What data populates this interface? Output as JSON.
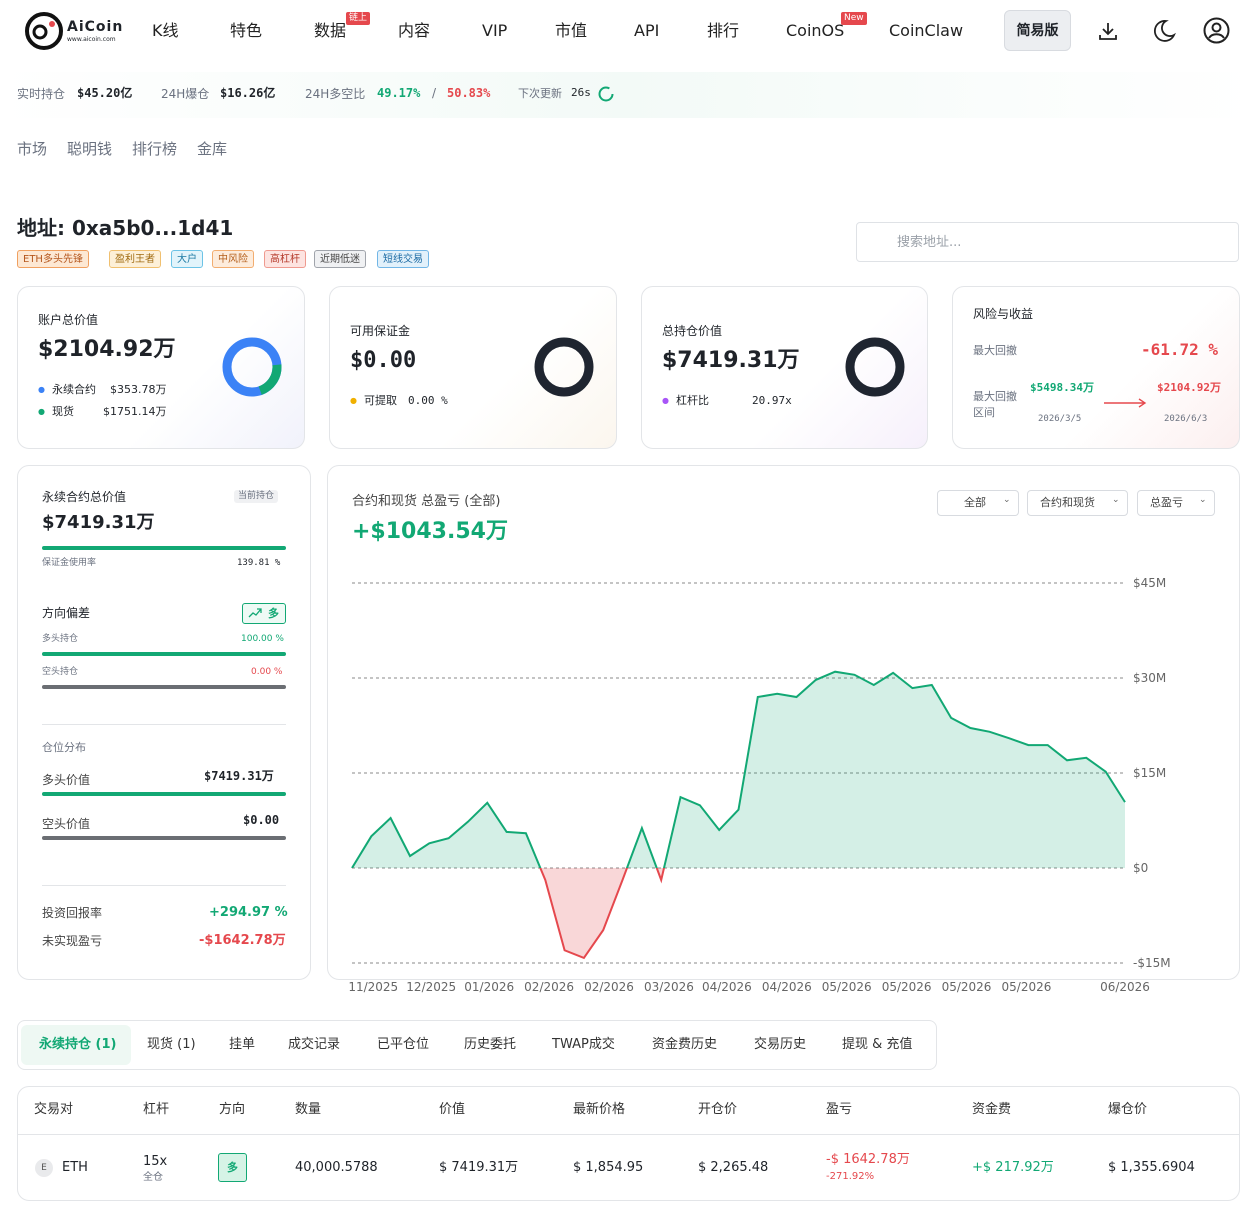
{
  "nav": {
    "logo": "AiCoin",
    "logo_sub": "www.aicoin.com",
    "items": [
      {
        "label": "K线"
      },
      {
        "label": "特色"
      },
      {
        "label": "数据",
        "badge": "链上"
      },
      {
        "label": "内容"
      },
      {
        "label": "VIP"
      },
      {
        "label": "市值"
      },
      {
        "label": "API"
      },
      {
        "label": "排行"
      },
      {
        "label": "CoinOS",
        "badge": "New"
      },
      {
        "label": "CoinClaw"
      }
    ],
    "simple_mode": "简易版"
  },
  "ticker": {
    "open_interest": {
      "label": "实时持仓",
      "value": "$45.20亿"
    },
    "liquidations": {
      "label": "24H爆仓",
      "value": "$16.26亿"
    },
    "ratio": {
      "label": "24H多空比",
      "long": "49.17%",
      "sep": "/",
      "short": "50.83%"
    },
    "update": {
      "label": "下次更新",
      "value": "26s"
    }
  },
  "subnav": [
    "市场",
    "聪明钱",
    "排行榜",
    "金库"
  ],
  "address": {
    "title": "地址: 0xa5b0...1d41",
    "tags": [
      "ETH多头先锋",
      "盈利王者",
      "大户",
      "中风险",
      "高杠杆",
      "近期低迷",
      "短线交易"
    ],
    "search_placeholder": "搜索地址..."
  },
  "cards": {
    "account": {
      "label": "账户总价值",
      "value": "$2104.92万",
      "items": [
        {
          "label": "永续合约",
          "value": "$353.78万"
        },
        {
          "label": "现货",
          "value": "$1751.14万"
        }
      ]
    },
    "margin": {
      "label": "可用保证金",
      "value": "$0.00",
      "item_label": "可提取",
      "item_value": "0.00 %"
    },
    "position": {
      "label": "总持仓价值",
      "value": "$7419.31万",
      "item_label": "杠杆比",
      "item_value": "20.97x"
    },
    "risk": {
      "label": "风险与收益",
      "max_dd_label": "最大回撤",
      "max_dd": "-61.72 %",
      "range_label": "最大回撤区间",
      "from_value": "$5498.34万",
      "from_date": "2026/3/5",
      "to_value": "$2104.92万",
      "to_date": "2026/6/3"
    }
  },
  "perp": {
    "label": "永续合约总价值",
    "badge": "当前持仓",
    "value": "$7419.31万",
    "usage_label": "保证金使用率",
    "usage": "139.81 %",
    "bias_label": "方向偏差",
    "bias_badge": "多",
    "long_label": "多头持仓",
    "long_pct": "100.00 %",
    "short_label": "空头持仓",
    "short_pct": "0.00 %",
    "dist_label": "仓位分布",
    "long_value_label": "多头价值",
    "long_value": "$7419.31万",
    "short_value_label": "空头价值",
    "short_value": "$0.00",
    "roi_label": "投资回报率",
    "roi": "+294.97 %",
    "upnl_label": "未实现盈亏",
    "upnl": "-$1642.78万"
  },
  "pnl": {
    "title": "合约和现货 总盈亏 (全部)",
    "total": "+$1043.54万",
    "filters": [
      "全部",
      "合约和现货",
      "总盈亏"
    ]
  },
  "chart_data": {
    "type": "area",
    "color": "#12a874",
    "negative_color": "#e5484d",
    "grid": true,
    "values": [
      0,
      5,
      7.9,
      1.9,
      3.9,
      4.7,
      7.3,
      10.3,
      5.7,
      5.5,
      -1.9,
      -13,
      -14.2,
      -9.8,
      -1.9,
      6.3,
      -1.9,
      11.2,
      9.9,
      6,
      9.2,
      27,
      27.5,
      27,
      29.7,
      31,
      30.5,
      28.9,
      30.8,
      28.4,
      28.9,
      23.7,
      22.1,
      21.5,
      20.5,
      19.4,
      19.4,
      17,
      17.4,
      15.2,
      10.4
    ],
    "xlim": [
      0,
      40
    ],
    "xticks": [
      {
        "value": 1.1,
        "label": "11/2025"
      },
      {
        "value": 4.1,
        "label": "12/2025"
      },
      {
        "value": 7.1,
        "label": "01/2026"
      },
      {
        "value": 10.2,
        "label": "02/2026"
      },
      {
        "value": 13.3,
        "label": "02/2026"
      },
      {
        "value": 16.4,
        "label": "03/2026"
      },
      {
        "value": 19.4,
        "label": "04/2026"
      },
      {
        "value": 22.5,
        "label": "04/2026"
      },
      {
        "value": 25.6,
        "label": "05/2026"
      },
      {
        "value": 28.7,
        "label": "05/2026"
      },
      {
        "value": 31.8,
        "label": "05/2026"
      },
      {
        "value": 34.9,
        "label": "05/2026"
      },
      {
        "value": 40,
        "label": "06/2026"
      }
    ],
    "ylim": [
      -15,
      45
    ],
    "yticks": [
      {
        "value": 45,
        "label": "$45M"
      },
      {
        "value": 30,
        "label": "$30M"
      },
      {
        "value": 15,
        "label": "$15M"
      },
      {
        "value": 0,
        "label": "$0"
      },
      {
        "value": -15,
        "label": "-$15M"
      }
    ]
  },
  "tabs": [
    "永续持仓 (1)",
    "现货 (1)",
    "挂单",
    "成交记录",
    "已平仓位",
    "历史委托",
    "TWAP成交",
    "资金费历史",
    "交易历史",
    "提现 & 充值"
  ],
  "table": {
    "headers": [
      "交易对",
      "杠杆",
      "方向",
      "数量",
      "价值",
      "最新价格",
      "开仓价",
      "盈亏",
      "资金费",
      "爆仓价"
    ],
    "rows": [
      {
        "icon": "E",
        "pair": "ETH",
        "leverage": "15x",
        "margin_mode": "全仓",
        "side": "多",
        "size": "40,000.5788",
        "value": "$ 7419.31万",
        "mark": "$ 1,854.95",
        "entry": "$ 2,265.48",
        "pnl": "-$ 1642.78万",
        "pnl_pct": "-271.92%",
        "funding": "+$ 217.92万",
        "liq": "$ 1,355.6904"
      }
    ]
  }
}
